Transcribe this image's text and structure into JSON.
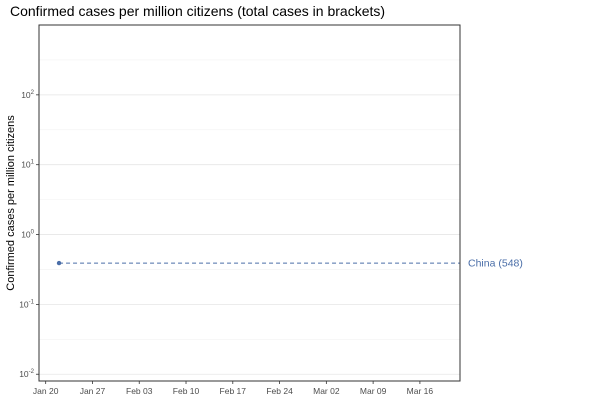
{
  "chart_data": {
    "type": "line",
    "title": "Confirmed cases per million citizens (total cases in brackets)",
    "ylabel": "Confirmed cases per million citizens",
    "xlabel": "",
    "y_scale": "log10",
    "ylim": [
      0.008,
      1000
    ],
    "y_ticks": [
      0.01,
      0.1,
      1,
      10,
      100
    ],
    "y_tick_labels": [
      {
        "base": "10",
        "exp": "-2"
      },
      {
        "base": "10",
        "exp": "-1"
      },
      {
        "base": "10",
        "exp": "0"
      },
      {
        "base": "10",
        "exp": "1"
      },
      {
        "base": "10",
        "exp": "2"
      }
    ],
    "xlim": [
      "2020-01-19",
      "2020-03-22"
    ],
    "x_ticks": [
      "2020-01-20",
      "2020-01-27",
      "2020-02-03",
      "2020-02-10",
      "2020-02-17",
      "2020-02-24",
      "2020-03-02",
      "2020-03-09",
      "2020-03-16"
    ],
    "x_tick_labels": [
      "Jan 20",
      "Jan 27",
      "Feb 03",
      "Feb 10",
      "Feb 17",
      "Feb 24",
      "Mar 02",
      "Mar 09",
      "Mar 16"
    ],
    "grid": true,
    "series": [
      {
        "name": "China (548)",
        "color": "#4a6ea8",
        "line_style": "dashed",
        "points": [
          {
            "x": "2020-01-22",
            "y": 0.39
          }
        ],
        "extends_to_edge": true
      }
    ]
  }
}
